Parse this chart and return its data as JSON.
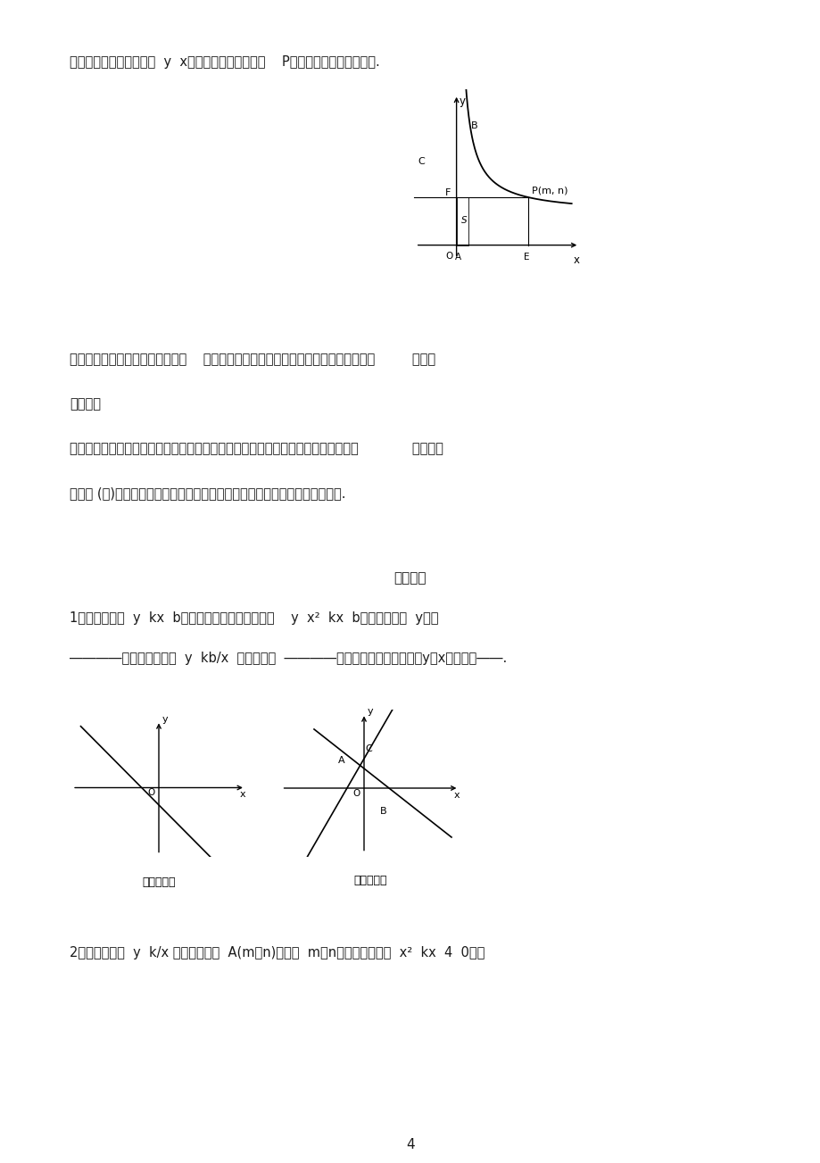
{
  "bg_color": "#ffffff",
  "text_color": "#1a1a1a",
  "page_width": 9.2,
  "page_height": 13.03,
  "dpi": 100,
  "line1": "解题的关键是双曲线关于  y  x对称，符合题设条件的    P点不惟一，故思考须周密.",
  "note_line1": "注：求两个函数图象的交点坐标，    一般通过解这两个函数解析式组成的方程组得到，         求符合",
  "note_line2": "某种条件",
  "note_line3": "的点的坐标，需根据问题中的数量关系和几何元素间的关系建立关于纵横坐标的方程             （组），",
  "note_line4": "解方程 (组)便可求得有关点的坐标，对于几何问题，还应注意图形的分类讨论.",
  "section_title": "学历训练",
  "q1_line1": "1．若一次函数  y  kx  b的图象如图所示，则抛物线    y  x²  kx  b的对称轴位于  y轴的",
  "q1_line2": "――――侧；反比例函数  y  kb/x  的图象在第  ――――象限，在每一个象限内，y随x的增大而――.",
  "q2_line": "2．反比例函数  y  k/x 的图象经过点  A(m，n)，其中  m、n是一元二次方程  x²  kx  4  0的两",
  "page_num": "4"
}
